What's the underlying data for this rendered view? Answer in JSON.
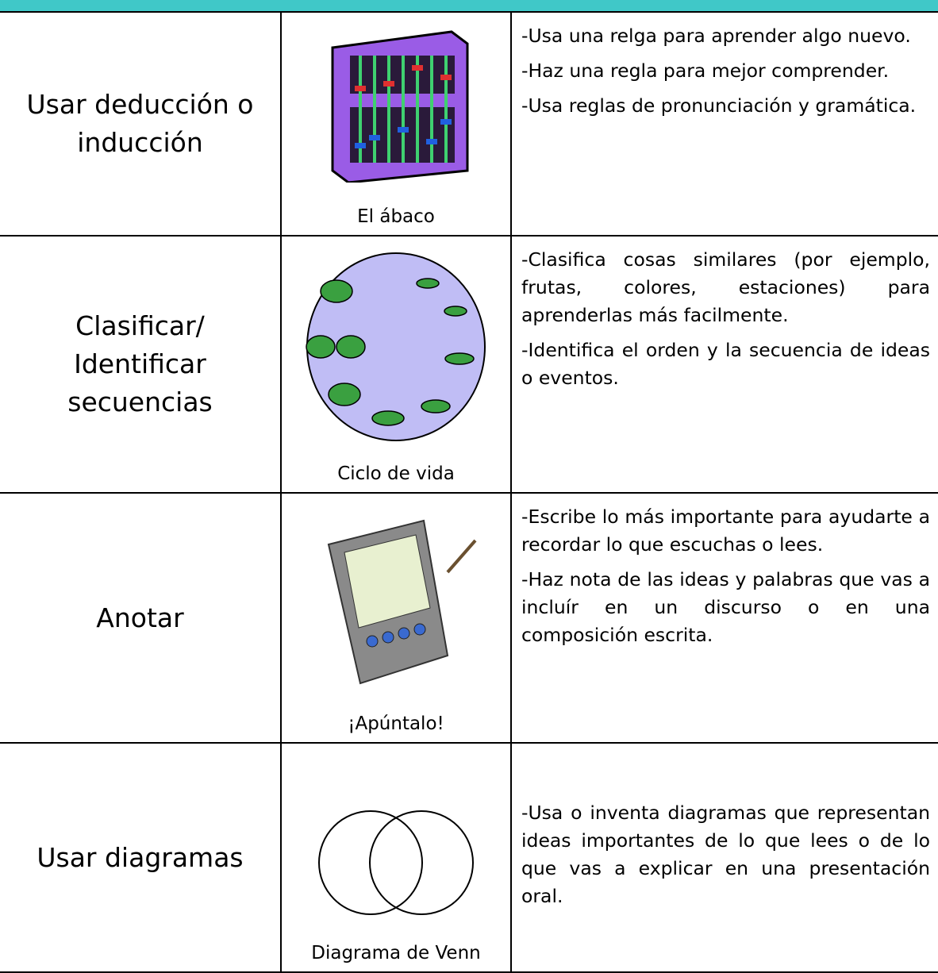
{
  "table": {
    "rows": [
      {
        "strategy": "Usar deducción o inducción",
        "caption": "El ábaco",
        "bullets": [
          "-Usa una relga para aprender algo nuevo.",
          "-Haz una regla para mejor comprender.",
          "-Usa reglas de pronunciación y gramática."
        ]
      },
      {
        "strategy": "Clasificar/ Identificar secuencias",
        "caption": "Ciclo de vida",
        "bullets": [
          "-Clasifica cosas similares (por ejemplo, frutas, colores, estaciones) para aprenderlas más facilmente.",
          "-Identifica el orden y la secuencia de ideas o eventos."
        ]
      },
      {
        "strategy": "Anotar",
        "caption": "¡Apúntalo!",
        "bullets": [
          "-Escribe lo más importante para ayudarte a recordar lo que escuchas o lees.",
          "-Haz nota de las ideas y palabras que vas a incluír en un discurso o en una composición escrita."
        ]
      },
      {
        "strategy": "Usar diagramas",
        "caption": "Diagrama de Venn",
        "bullets": [
          "-Usa o inventa diagramas que representan ideas importantes de lo que lees o de lo que vas a explicar en una presentación oral."
        ]
      }
    ]
  }
}
